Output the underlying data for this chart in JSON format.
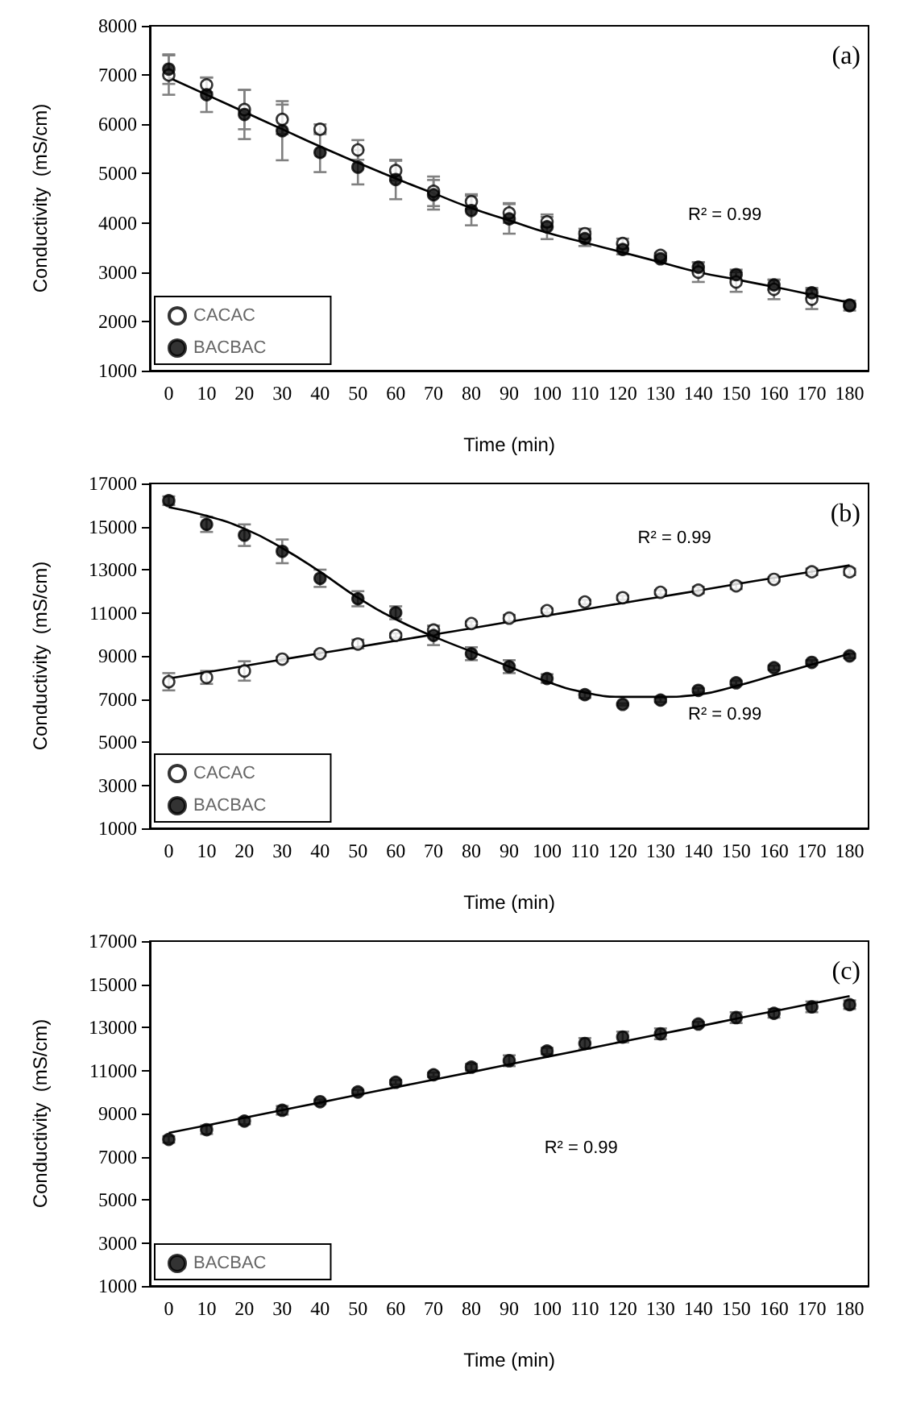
{
  "chart_data": [
    {
      "type": "scatter",
      "title": "(a)",
      "xlabel": "Time (min)",
      "ylabel": "Conductivity  (mS/cm)",
      "categories": [
        "0",
        "10",
        "20",
        "30",
        "40",
        "50",
        "60",
        "70",
        "80",
        "90",
        "100",
        "110",
        "120",
        "130",
        "140",
        "150",
        "160",
        "170",
        "180"
      ],
      "ylim": [
        1000,
        8000
      ],
      "yticks": [
        1000,
        2000,
        3000,
        4000,
        5000,
        6000,
        7000,
        8000
      ],
      "grid": false,
      "legend": "bottom left",
      "marker": "circle",
      "series": [
        {
          "name": "CACAC",
          "color": "#ffffff",
          "values": [
            7000,
            6800,
            6300,
            6100,
            5900,
            5480,
            5060,
            4640,
            4430,
            4200,
            4020,
            3780,
            3580,
            3340,
            3000,
            2800,
            2650,
            2450,
            2330
          ],
          "errors": [
            400,
            150,
            400,
            300,
            100,
            200,
            200,
            300,
            150,
            200,
            100,
            100,
            100,
            50,
            200,
            200,
            200,
            200,
            50
          ]
        },
        {
          "name": "BACBAC",
          "color": "#000000",
          "values": [
            7120,
            6600,
            6200,
            5870,
            5430,
            5130,
            4880,
            4570,
            4250,
            4080,
            3920,
            3680,
            3460,
            3270,
            3100,
            2950,
            2740,
            2580,
            2320
          ],
          "errors": [
            300,
            350,
            500,
            600,
            400,
            350,
            400,
            300,
            300,
            300,
            250,
            150,
            100,
            50,
            100,
            100,
            100,
            100,
            100
          ]
        },
        {
          "type": "line",
          "color": "#000000",
          "marker": "none",
          "values": [
            6950,
            6600,
            6250,
            5900,
            5550,
            5220,
            4900,
            4600,
            4300,
            4050,
            3800,
            3600,
            3400,
            3200,
            3000,
            2850,
            2700,
            2540,
            2380
          ]
        }
      ],
      "annotations": [
        "R² = 0.99"
      ]
    },
    {
      "type": "scatter",
      "title": "(b)",
      "xlabel": "Time (min)",
      "ylabel": "Conductivity  (mS/cm)",
      "categories": [
        "0",
        "10",
        "20",
        "30",
        "40",
        "50",
        "60",
        "70",
        "80",
        "90",
        "100",
        "110",
        "120",
        "130",
        "140",
        "150",
        "160",
        "170",
        "180"
      ],
      "ylim": [
        1000,
        17000
      ],
      "yticks": [
        1000,
        3000,
        5000,
        7000,
        9000,
        11000,
        13000,
        15000,
        17000
      ],
      "grid": false,
      "legend": "bottom left",
      "marker": "circle",
      "series": [
        {
          "name": "CACAC",
          "color": "#ffffff",
          "values": [
            7800,
            8000,
            8300,
            8850,
            9100,
            9550,
            9950,
            10200,
            10500,
            10750,
            11100,
            11500,
            11700,
            11950,
            12050,
            12250,
            12550,
            12900,
            12900
          ],
          "errors": [
            400,
            300,
            450,
            100,
            100,
            200,
            100,
            200,
            100,
            150,
            100,
            100,
            100,
            100,
            150,
            150,
            100,
            150,
            150
          ]
        },
        {
          "name": "BACBAC",
          "color": "#000000",
          "values": [
            16200,
            15100,
            14600,
            13850,
            12600,
            11650,
            11000,
            9950,
            9100,
            8500,
            7950,
            7200,
            6750,
            6950,
            7400,
            7750,
            8450,
            8700,
            9000
          ],
          "errors": [
            200,
            350,
            500,
            550,
            400,
            350,
            300,
            450,
            300,
            300,
            200,
            150,
            50,
            100,
            100,
            100,
            100,
            100,
            100
          ]
        },
        {
          "type": "line",
          "color": "#000000",
          "marker": "none",
          "values": [
            7950,
            8240,
            8530,
            8830,
            9120,
            9410,
            9700,
            9990,
            10280,
            10580,
            10870,
            11160,
            11450,
            11740,
            12030,
            12330,
            12620,
            12910,
            13200
          ]
        },
        {
          "type": "line",
          "color": "#000000",
          "marker": "none",
          "values": [
            15900,
            15500,
            14900,
            14000,
            12900,
            11700,
            10700,
            9900,
            9200,
            8500,
            7800,
            7300,
            7100,
            7100,
            7200,
            7600,
            8100,
            8600,
            9100
          ]
        }
      ],
      "annotations": [
        "R² = 0.99",
        "R² = 0.99"
      ]
    },
    {
      "type": "scatter",
      "title": "(c)",
      "xlabel": "Time (min)",
      "ylabel": "Conductivity  (mS/cm)",
      "categories": [
        "0",
        "10",
        "20",
        "30",
        "40",
        "50",
        "60",
        "70",
        "80",
        "90",
        "100",
        "110",
        "120",
        "130",
        "140",
        "150",
        "160",
        "170",
        "180"
      ],
      "ylim": [
        1000,
        17000
      ],
      "yticks": [
        1000,
        3000,
        5000,
        7000,
        9000,
        11000,
        13000,
        15000,
        17000
      ],
      "grid": false,
      "legend": "bottom left",
      "marker": "circle",
      "series": [
        {
          "name": "BACBAC",
          "color": "#000000",
          "values": [
            7800,
            8250,
            8650,
            9150,
            9550,
            10000,
            10450,
            10800,
            11150,
            11450,
            11900,
            12250,
            12550,
            12700,
            13150,
            13450,
            13650,
            13950,
            14050
          ],
          "errors": [
            150,
            200,
            150,
            200,
            100,
            100,
            100,
            100,
            150,
            250,
            150,
            250,
            250,
            250,
            100,
            250,
            200,
            250,
            200
          ]
        },
        {
          "type": "line",
          "color": "#000000",
          "marker": "none",
          "values": [
            8100,
            8450,
            8800,
            9160,
            9510,
            9870,
            10220,
            10570,
            10920,
            11280,
            11630,
            11980,
            12340,
            12690,
            13040,
            13400,
            13750,
            14100,
            14450
          ]
        }
      ],
      "annotations": [
        "R² = 0.99"
      ]
    }
  ]
}
